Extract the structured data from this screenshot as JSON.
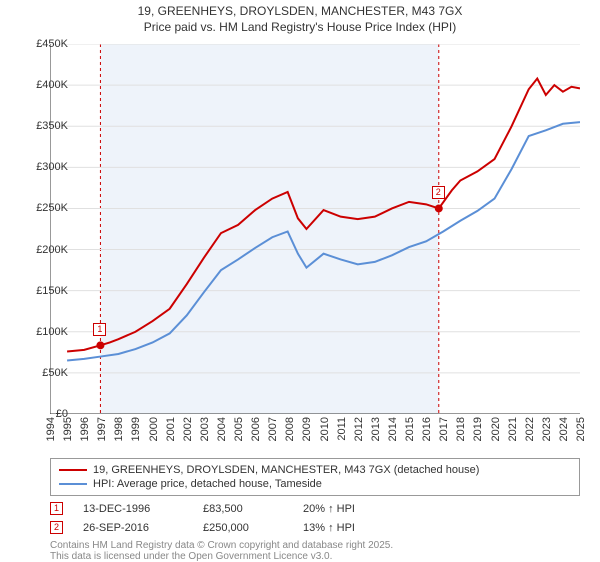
{
  "title": {
    "line1": "19, GREENHEYS, DROYLSDEN, MANCHESTER, M43 7GX",
    "line2": "Price paid vs. HM Land Registry's House Price Index (HPI)"
  },
  "chart": {
    "type": "line",
    "background_color": "#ffffff",
    "grid_color": "#e0e0e0",
    "shaded_region_color": "#eef3fa",
    "xlim": [
      1994,
      2025
    ],
    "ylim": [
      0,
      450000
    ],
    "ytick_step": 50000,
    "y_labels": [
      "£0",
      "£50K",
      "£100K",
      "£150K",
      "£200K",
      "£250K",
      "£300K",
      "£350K",
      "£400K",
      "£450K"
    ],
    "x_labels": [
      "1994",
      "1995",
      "1996",
      "1997",
      "1998",
      "1999",
      "2000",
      "2001",
      "2002",
      "2003",
      "2004",
      "2005",
      "2006",
      "2007",
      "2008",
      "2009",
      "2010",
      "2011",
      "2012",
      "2013",
      "2014",
      "2015",
      "2016",
      "2017",
      "2018",
      "2019",
      "2020",
      "2021",
      "2022",
      "2023",
      "2024",
      "2025"
    ],
    "shaded_region": {
      "x_start": 1996.95,
      "x_end": 2016.74
    },
    "series": [
      {
        "name": "19, GREENHEYS, DROYLSDEN, MANCHESTER, M43 7GX (detached house)",
        "color": "#cc0000",
        "width": 2,
        "data": [
          [
            1995.0,
            76000
          ],
          [
            1996.0,
            78000
          ],
          [
            1996.95,
            83500
          ],
          [
            1997.5,
            87000
          ],
          [
            1998.0,
            91000
          ],
          [
            1999.0,
            100000
          ],
          [
            2000.0,
            113000
          ],
          [
            2001.0,
            128000
          ],
          [
            2002.0,
            158000
          ],
          [
            2003.0,
            190000
          ],
          [
            2004.0,
            220000
          ],
          [
            2005.0,
            230000
          ],
          [
            2006.0,
            248000
          ],
          [
            2007.0,
            262000
          ],
          [
            2007.9,
            270000
          ],
          [
            2008.5,
            238000
          ],
          [
            2009.0,
            225000
          ],
          [
            2010.0,
            248000
          ],
          [
            2011.0,
            240000
          ],
          [
            2012.0,
            237000
          ],
          [
            2013.0,
            240000
          ],
          [
            2014.0,
            250000
          ],
          [
            2015.0,
            258000
          ],
          [
            2016.0,
            255000
          ],
          [
            2016.74,
            250000
          ],
          [
            2017.5,
            272000
          ],
          [
            2018.0,
            284000
          ],
          [
            2019.0,
            295000
          ],
          [
            2020.0,
            310000
          ],
          [
            2021.0,
            350000
          ],
          [
            2022.0,
            395000
          ],
          [
            2022.5,
            408000
          ],
          [
            2023.0,
            388000
          ],
          [
            2023.5,
            400000
          ],
          [
            2024.0,
            392000
          ],
          [
            2024.5,
            398000
          ],
          [
            2025.0,
            396000
          ]
        ]
      },
      {
        "name": "HPI: Average price, detached house, Tameside",
        "color": "#5b8fd6",
        "width": 2,
        "data": [
          [
            1995.0,
            65000
          ],
          [
            1996.0,
            67000
          ],
          [
            1997.0,
            70000
          ],
          [
            1998.0,
            73000
          ],
          [
            1999.0,
            79000
          ],
          [
            2000.0,
            87000
          ],
          [
            2001.0,
            98000
          ],
          [
            2002.0,
            120000
          ],
          [
            2003.0,
            148000
          ],
          [
            2004.0,
            175000
          ],
          [
            2005.0,
            188000
          ],
          [
            2006.0,
            202000
          ],
          [
            2007.0,
            215000
          ],
          [
            2007.9,
            222000
          ],
          [
            2008.5,
            195000
          ],
          [
            2009.0,
            178000
          ],
          [
            2010.0,
            195000
          ],
          [
            2011.0,
            188000
          ],
          [
            2012.0,
            182000
          ],
          [
            2013.0,
            185000
          ],
          [
            2014.0,
            193000
          ],
          [
            2015.0,
            203000
          ],
          [
            2016.0,
            210000
          ],
          [
            2017.0,
            222000
          ],
          [
            2018.0,
            235000
          ],
          [
            2019.0,
            247000
          ],
          [
            2020.0,
            262000
          ],
          [
            2021.0,
            298000
          ],
          [
            2022.0,
            338000
          ],
          [
            2023.0,
            345000
          ],
          [
            2024.0,
            353000
          ],
          [
            2025.0,
            355000
          ]
        ]
      }
    ],
    "markers": [
      {
        "n": "1",
        "x": 1996.95,
        "y": 83500,
        "color": "#cc0000"
      },
      {
        "n": "2",
        "x": 2016.74,
        "y": 250000,
        "color": "#cc0000"
      }
    ]
  },
  "legend": {
    "row1_color": "#cc0000",
    "row1_label": "19, GREENHEYS, DROYLSDEN, MANCHESTER, M43 7GX (detached house)",
    "row2_color": "#5b8fd6",
    "row2_label": "HPI: Average price, detached house, Tameside"
  },
  "sales": [
    {
      "n": "1",
      "color": "#cc0000",
      "date": "13-DEC-1996",
      "price": "£83,500",
      "pct": "20% ↑ HPI"
    },
    {
      "n": "2",
      "color": "#cc0000",
      "date": "26-SEP-2016",
      "price": "£250,000",
      "pct": "13% ↑ HPI"
    }
  ],
  "footnote": {
    "line1": "Contains HM Land Registry data © Crown copyright and database right 2025.",
    "line2": "This data is licensed under the Open Government Licence v3.0."
  }
}
